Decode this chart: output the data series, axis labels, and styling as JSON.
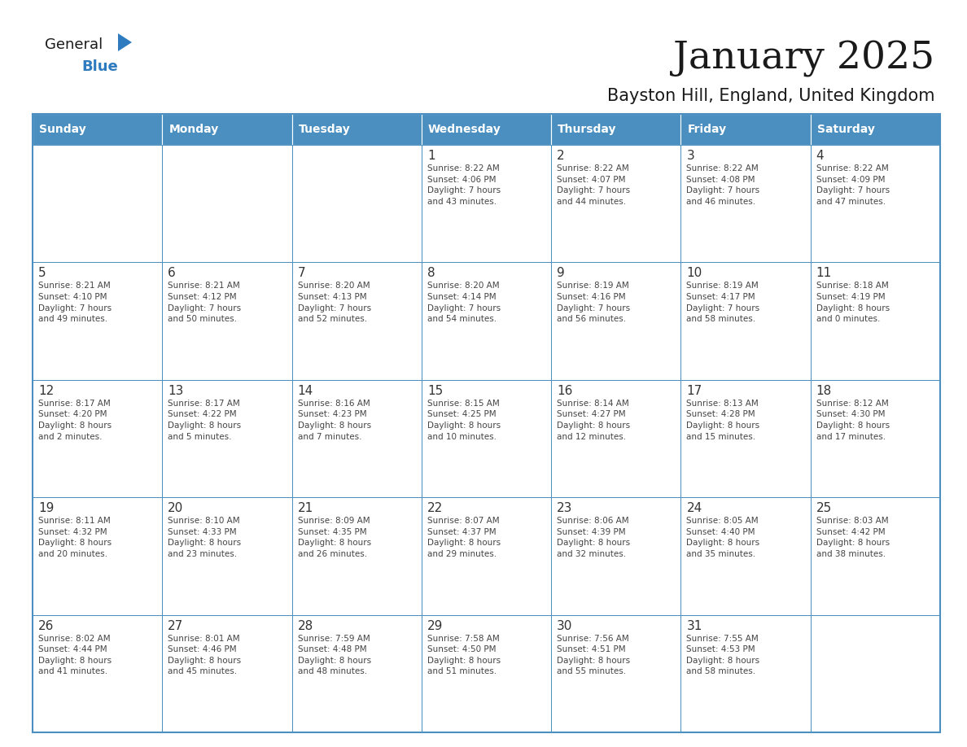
{
  "title": "January 2025",
  "subtitle": "Bayston Hill, England, United Kingdom",
  "days_of_week": [
    "Sunday",
    "Monday",
    "Tuesday",
    "Wednesday",
    "Thursday",
    "Friday",
    "Saturday"
  ],
  "header_bg": "#4a8fc0",
  "header_text": "#ffffff",
  "cell_bg": "#ffffff",
  "border_color": "#4a8fc0",
  "text_color": "#444444",
  "number_color": "#333333",
  "title_color": "#1a1a1a",
  "subtitle_color": "#1a1a1a",
  "logo_general_color": "#1a1a1a",
  "logo_blue_color": "#2e7bbf",
  "logo_triangle_color": "#2e7bbf",
  "calendar_data": [
    [
      {
        "day": null,
        "info": ""
      },
      {
        "day": null,
        "info": ""
      },
      {
        "day": null,
        "info": ""
      },
      {
        "day": 1,
        "info": "Sunrise: 8:22 AM\nSunset: 4:06 PM\nDaylight: 7 hours\nand 43 minutes."
      },
      {
        "day": 2,
        "info": "Sunrise: 8:22 AM\nSunset: 4:07 PM\nDaylight: 7 hours\nand 44 minutes."
      },
      {
        "day": 3,
        "info": "Sunrise: 8:22 AM\nSunset: 4:08 PM\nDaylight: 7 hours\nand 46 minutes."
      },
      {
        "day": 4,
        "info": "Sunrise: 8:22 AM\nSunset: 4:09 PM\nDaylight: 7 hours\nand 47 minutes."
      }
    ],
    [
      {
        "day": 5,
        "info": "Sunrise: 8:21 AM\nSunset: 4:10 PM\nDaylight: 7 hours\nand 49 minutes."
      },
      {
        "day": 6,
        "info": "Sunrise: 8:21 AM\nSunset: 4:12 PM\nDaylight: 7 hours\nand 50 minutes."
      },
      {
        "day": 7,
        "info": "Sunrise: 8:20 AM\nSunset: 4:13 PM\nDaylight: 7 hours\nand 52 minutes."
      },
      {
        "day": 8,
        "info": "Sunrise: 8:20 AM\nSunset: 4:14 PM\nDaylight: 7 hours\nand 54 minutes."
      },
      {
        "day": 9,
        "info": "Sunrise: 8:19 AM\nSunset: 4:16 PM\nDaylight: 7 hours\nand 56 minutes."
      },
      {
        "day": 10,
        "info": "Sunrise: 8:19 AM\nSunset: 4:17 PM\nDaylight: 7 hours\nand 58 minutes."
      },
      {
        "day": 11,
        "info": "Sunrise: 8:18 AM\nSunset: 4:19 PM\nDaylight: 8 hours\nand 0 minutes."
      }
    ],
    [
      {
        "day": 12,
        "info": "Sunrise: 8:17 AM\nSunset: 4:20 PM\nDaylight: 8 hours\nand 2 minutes."
      },
      {
        "day": 13,
        "info": "Sunrise: 8:17 AM\nSunset: 4:22 PM\nDaylight: 8 hours\nand 5 minutes."
      },
      {
        "day": 14,
        "info": "Sunrise: 8:16 AM\nSunset: 4:23 PM\nDaylight: 8 hours\nand 7 minutes."
      },
      {
        "day": 15,
        "info": "Sunrise: 8:15 AM\nSunset: 4:25 PM\nDaylight: 8 hours\nand 10 minutes."
      },
      {
        "day": 16,
        "info": "Sunrise: 8:14 AM\nSunset: 4:27 PM\nDaylight: 8 hours\nand 12 minutes."
      },
      {
        "day": 17,
        "info": "Sunrise: 8:13 AM\nSunset: 4:28 PM\nDaylight: 8 hours\nand 15 minutes."
      },
      {
        "day": 18,
        "info": "Sunrise: 8:12 AM\nSunset: 4:30 PM\nDaylight: 8 hours\nand 17 minutes."
      }
    ],
    [
      {
        "day": 19,
        "info": "Sunrise: 8:11 AM\nSunset: 4:32 PM\nDaylight: 8 hours\nand 20 minutes."
      },
      {
        "day": 20,
        "info": "Sunrise: 8:10 AM\nSunset: 4:33 PM\nDaylight: 8 hours\nand 23 minutes."
      },
      {
        "day": 21,
        "info": "Sunrise: 8:09 AM\nSunset: 4:35 PM\nDaylight: 8 hours\nand 26 minutes."
      },
      {
        "day": 22,
        "info": "Sunrise: 8:07 AM\nSunset: 4:37 PM\nDaylight: 8 hours\nand 29 minutes."
      },
      {
        "day": 23,
        "info": "Sunrise: 8:06 AM\nSunset: 4:39 PM\nDaylight: 8 hours\nand 32 minutes."
      },
      {
        "day": 24,
        "info": "Sunrise: 8:05 AM\nSunset: 4:40 PM\nDaylight: 8 hours\nand 35 minutes."
      },
      {
        "day": 25,
        "info": "Sunrise: 8:03 AM\nSunset: 4:42 PM\nDaylight: 8 hours\nand 38 minutes."
      }
    ],
    [
      {
        "day": 26,
        "info": "Sunrise: 8:02 AM\nSunset: 4:44 PM\nDaylight: 8 hours\nand 41 minutes."
      },
      {
        "day": 27,
        "info": "Sunrise: 8:01 AM\nSunset: 4:46 PM\nDaylight: 8 hours\nand 45 minutes."
      },
      {
        "day": 28,
        "info": "Sunrise: 7:59 AM\nSunset: 4:48 PM\nDaylight: 8 hours\nand 48 minutes."
      },
      {
        "day": 29,
        "info": "Sunrise: 7:58 AM\nSunset: 4:50 PM\nDaylight: 8 hours\nand 51 minutes."
      },
      {
        "day": 30,
        "info": "Sunrise: 7:56 AM\nSunset: 4:51 PM\nDaylight: 8 hours\nand 55 minutes."
      },
      {
        "day": 31,
        "info": "Sunrise: 7:55 AM\nSunset: 4:53 PM\nDaylight: 8 hours\nand 58 minutes."
      },
      {
        "day": null,
        "info": ""
      }
    ]
  ]
}
